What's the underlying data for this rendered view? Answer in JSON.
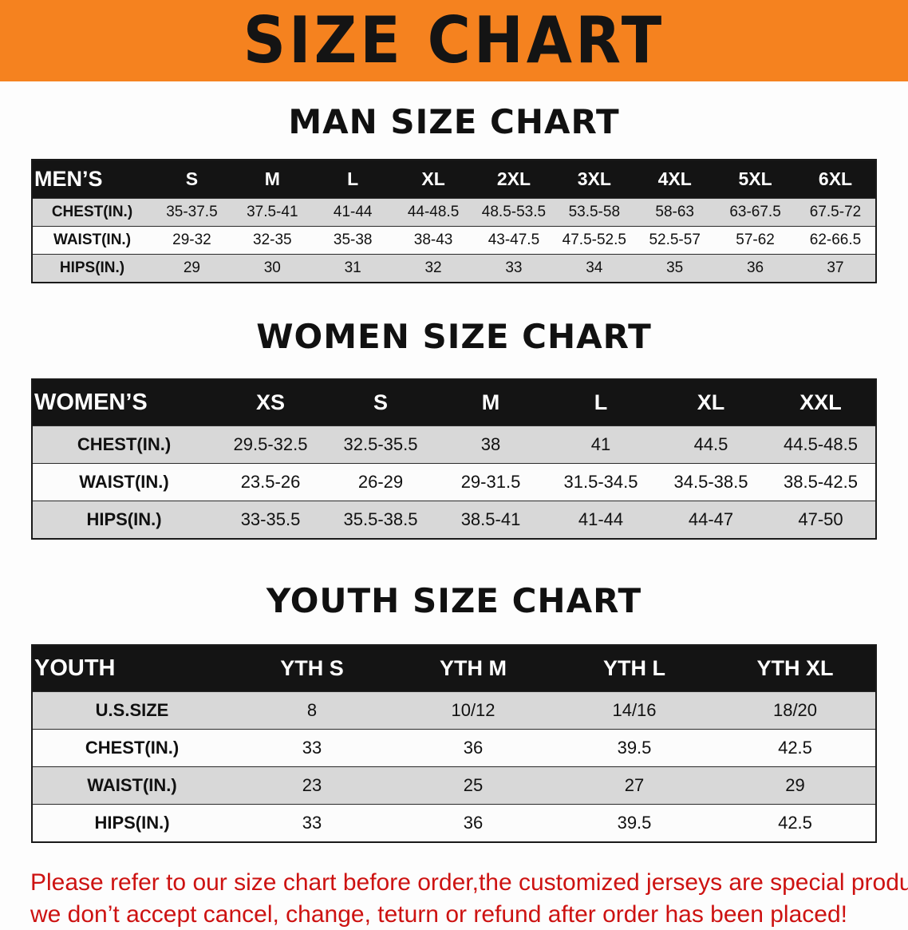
{
  "banner": {
    "title": "SIZE CHART",
    "bg_color": "#f5821f",
    "text_color": "#141414"
  },
  "colors": {
    "table_header_bg": "#141414",
    "table_row_alt_bg": "#d8d8d8",
    "footer_text": "#cd1211"
  },
  "sections": [
    {
      "id": "men",
      "heading": "MAN SIZE CHART",
      "table": {
        "header": [
          "MEN’S",
          "S",
          "M",
          "L",
          "XL",
          "2XL",
          "3XL",
          "4XL",
          "5XL",
          "6XL"
        ],
        "rows": [
          [
            "CHEST(IN.)",
            "35-37.5",
            "37.5-41",
            "41-44",
            "44-48.5",
            "48.5-53.5",
            "53.5-58",
            "58-63",
            "63-67.5",
            "67.5-72"
          ],
          [
            "WAIST(IN.)",
            "29-32",
            "32-35",
            "35-38",
            "38-43",
            "43-47.5",
            "47.5-52.5",
            "52.5-57",
            "57-62",
            "62-66.5"
          ],
          [
            "HIPS(IN.)",
            "29",
            "30",
            "31",
            "32",
            "33",
            "34",
            "35",
            "36",
            "37"
          ]
        ]
      }
    },
    {
      "id": "women",
      "heading": "WOMEN SIZE CHART",
      "table": {
        "header": [
          "WOMEN’S",
          "XS",
          "S",
          "M",
          "L",
          "XL",
          "XXL"
        ],
        "rows": [
          [
            "CHEST(IN.)",
            "29.5-32.5",
            "32.5-35.5",
            "38",
            "41",
            "44.5",
            "44.5-48.5"
          ],
          [
            "WAIST(IN.)",
            "23.5-26",
            "26-29",
            "29-31.5",
            "31.5-34.5",
            "34.5-38.5",
            "38.5-42.5"
          ],
          [
            "HIPS(IN.)",
            "33-35.5",
            "35.5-38.5",
            "38.5-41",
            "41-44",
            "44-47",
            "47-50"
          ]
        ]
      }
    },
    {
      "id": "youth",
      "heading": "YOUTH SIZE CHART",
      "table": {
        "header": [
          "YOUTH",
          "YTH S",
          "YTH M",
          "YTH L",
          "YTH XL"
        ],
        "rows": [
          [
            "U.S.SIZE",
            "8",
            "10/12",
            "14/16",
            "18/20"
          ],
          [
            "CHEST(IN.)",
            "33",
            "36",
            "39.5",
            "42.5"
          ],
          [
            "WAIST(IN.)",
            "23",
            "25",
            "27",
            "29"
          ],
          [
            "HIPS(IN.)",
            "33",
            "36",
            "39.5",
            "42.5"
          ]
        ]
      }
    }
  ],
  "footer": {
    "line1": "Please refer to our size chart before order,the customized jerseys are special products,",
    "line2": "we don’t accept cancel, change, teturn or refund after order has been placed!"
  }
}
